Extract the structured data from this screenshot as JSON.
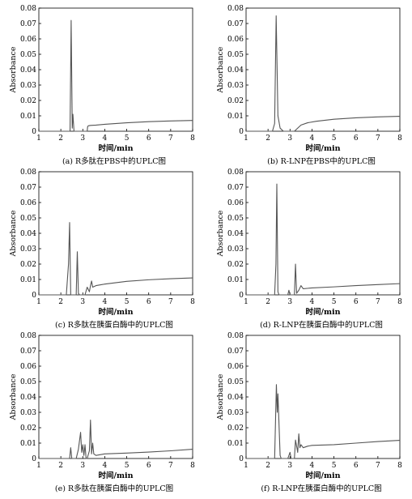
{
  "chart_data": [
    {
      "type": "line",
      "caption": "(a) R多肽在PBS中的UPLC图",
      "xlabel": "时间/min",
      "ylabel": "Absorbance",
      "xlim": [
        1,
        8
      ],
      "ylim": [
        0,
        0.08
      ],
      "xticks": [
        1,
        2,
        3,
        4,
        5,
        6,
        7,
        8
      ],
      "yticks": [
        0,
        0.01,
        0.02,
        0.03,
        0.04,
        0.05,
        0.06,
        0.07,
        0.08
      ],
      "ytick_labels": [
        "0",
        "0.01",
        "0.02",
        "0.03",
        "0.04",
        "0.05",
        "0.06",
        "0.07",
        "0.08"
      ],
      "grid": false,
      "series": [
        {
          "x": [
            1.0,
            2.3,
            2.42,
            2.47,
            2.52,
            2.55,
            2.6,
            2.65,
            2.75,
            3.1,
            3.2,
            3.22,
            3.25,
            3.35,
            3.6,
            4.0,
            5.0,
            6.0,
            7.0,
            8.0
          ],
          "y": [
            0.0,
            0.0,
            0.0,
            0.072,
            0.002,
            0.011,
            0.0,
            0.0,
            0.0,
            0.0,
            0.0,
            0.003,
            0.0035,
            0.0038,
            0.004,
            0.0045,
            0.0055,
            0.0062,
            0.0067,
            0.007
          ]
        }
      ]
    },
    {
      "type": "line",
      "caption": "(b) R-LNP在PBS中的UPLC图",
      "xlabel": "时间/min",
      "ylabel": "Absorbance",
      "xlim": [
        1,
        8
      ],
      "ylim": [
        0,
        0.08
      ],
      "xticks": [
        1,
        2,
        3,
        4,
        5,
        6,
        7,
        8
      ],
      "yticks": [
        0,
        0.01,
        0.02,
        0.03,
        0.04,
        0.05,
        0.06,
        0.07,
        0.08
      ],
      "ytick_labels": [
        "0",
        "0.01",
        "0.02",
        "0.03",
        "0.04",
        "0.05",
        "0.06",
        "0.07",
        "0.08"
      ],
      "grid": false,
      "series": [
        {
          "x": [
            1.0,
            2.2,
            2.3,
            2.37,
            2.45,
            2.55,
            2.7,
            3.1,
            3.2,
            3.5,
            3.8,
            4.2,
            5.0,
            6.0,
            7.0,
            8.0
          ],
          "y": [
            0.0,
            0.0,
            0.005,
            0.075,
            0.01,
            0.002,
            0.0,
            0.0,
            0.0,
            0.004,
            0.0055,
            0.0065,
            0.0078,
            0.0087,
            0.0093,
            0.0097
          ]
        }
      ]
    },
    {
      "type": "line",
      "caption": "(c) R多肽在胰蛋白酶中的UPLC图",
      "xlabel": "时间/min",
      "ylabel": "Absorbance",
      "xlim": [
        1,
        8
      ],
      "ylim": [
        0,
        0.08
      ],
      "xticks": [
        1,
        2,
        3,
        4,
        5,
        6,
        7,
        8
      ],
      "yticks": [
        0,
        0.01,
        0.02,
        0.03,
        0.04,
        0.05,
        0.06,
        0.07,
        0.08
      ],
      "ytick_labels": [
        "0",
        "0.01",
        "0.02",
        "0.03",
        "0.04",
        "0.05",
        "0.06",
        "0.07",
        "0.08"
      ],
      "grid": false,
      "series": [
        {
          "x": [
            1.0,
            2.25,
            2.35,
            2.4,
            2.45,
            2.5,
            2.7,
            2.75,
            2.8,
            2.85,
            3.1,
            3.2,
            3.3,
            3.35,
            3.4,
            3.45,
            3.6,
            4.0,
            5.0,
            6.0,
            7.0,
            8.0
          ],
          "y": [
            0.0,
            0.0,
            0.02,
            0.047,
            0.0,
            0.0,
            0.0,
            0.028,
            0.001,
            0.0,
            0.0,
            0.005,
            0.002,
            0.006,
            0.009,
            0.005,
            0.006,
            0.007,
            0.0088,
            0.0098,
            0.0105,
            0.011
          ]
        }
      ]
    },
    {
      "type": "line",
      "caption": "(d) R-LNP在胰蛋白酶中的UPLC图",
      "xlabel": "时间/min",
      "ylabel": "Absorbance",
      "xlim": [
        1,
        8
      ],
      "ylim": [
        0,
        0.08
      ],
      "xticks": [
        1,
        2,
        3,
        4,
        5,
        6,
        7,
        8
      ],
      "yticks": [
        0,
        0.01,
        0.02,
        0.03,
        0.04,
        0.05,
        0.06,
        0.07,
        0.08
      ],
      "ytick_labels": [
        "0",
        "0.01",
        "0.02",
        "0.03",
        "0.04",
        "0.05",
        "0.06",
        "0.07",
        "0.08"
      ],
      "grid": false,
      "series": [
        {
          "x": [
            1.0,
            2.3,
            2.36,
            2.4,
            2.45,
            2.5,
            2.9,
            2.95,
            3.0,
            3.05,
            3.2,
            3.25,
            3.3,
            3.4,
            3.5,
            3.6,
            4.0,
            5.0,
            6.0,
            7.0,
            8.0
          ],
          "y": [
            0.0,
            0.0,
            0.02,
            0.072,
            0.002,
            0.0,
            0.0,
            0.003,
            0.0,
            0.0,
            0.0,
            0.02,
            0.001,
            0.003,
            0.006,
            0.004,
            0.0045,
            0.0052,
            0.006,
            0.0067,
            0.0073
          ]
        }
      ]
    },
    {
      "type": "line",
      "caption": "(e) R多肽在胰蛋白酶中的UPLC图",
      "xlabel": "时间/min",
      "ylabel": "Absorbance",
      "xlim": [
        1,
        8
      ],
      "ylim": [
        0,
        0.08
      ],
      "xticks": [
        1,
        2,
        3,
        4,
        5,
        6,
        7,
        8
      ],
      "yticks": [
        0,
        0.01,
        0.02,
        0.03,
        0.04,
        0.05,
        0.06,
        0.07,
        0.08
      ],
      "ytick_labels": [
        "0",
        "0.01",
        "0.02",
        "0.03",
        "0.04",
        "0.05",
        "0.06",
        "0.07",
        "0.08"
      ],
      "grid": false,
      "series": [
        {
          "x": [
            1.0,
            2.4,
            2.45,
            2.5,
            2.7,
            2.8,
            2.9,
            2.95,
            3.0,
            3.05,
            3.1,
            3.15,
            3.2,
            3.3,
            3.35,
            3.4,
            3.45,
            3.5,
            3.6,
            4.0,
            5.0,
            6.0,
            7.0,
            8.0
          ],
          "y": [
            0.0,
            0.0,
            0.007,
            0.0,
            0.0,
            0.006,
            0.017,
            0.004,
            0.009,
            0.002,
            0.009,
            0.0,
            0.0,
            0.005,
            0.025,
            0.003,
            0.01,
            0.003,
            0.002,
            0.003,
            0.0035,
            0.0042,
            0.005,
            0.006
          ]
        }
      ]
    },
    {
      "type": "line",
      "caption": "(f) R-LNP在胰蛋白酶中的UPLC图",
      "xlabel": "时间/min",
      "ylabel": "Absorbance",
      "xlim": [
        1,
        8
      ],
      "ylim": [
        0,
        0.08
      ],
      "xticks": [
        1,
        2,
        3,
        4,
        5,
        6,
        7,
        8
      ],
      "yticks": [
        0,
        0.01,
        0.02,
        0.03,
        0.04,
        0.05,
        0.06,
        0.07,
        0.08
      ],
      "ytick_labels": [
        "0",
        "0.01",
        "0.02",
        "0.03",
        "0.04",
        "0.05",
        "0.06",
        "0.07",
        "0.08"
      ],
      "grid": false,
      "series": [
        {
          "x": [
            1.0,
            2.3,
            2.35,
            2.38,
            2.42,
            2.45,
            2.55,
            2.6,
            2.9,
            3.0,
            3.05,
            3.2,
            3.25,
            3.35,
            3.4,
            3.45,
            3.5,
            3.6,
            3.8,
            4.0,
            5.0,
            6.0,
            7.0,
            8.0
          ],
          "y": [
            0.0,
            0.0,
            0.03,
            0.048,
            0.03,
            0.042,
            0.002,
            0.0,
            0.0,
            0.004,
            0.0,
            0.0,
            0.012,
            0.004,
            0.016,
            0.007,
            0.009,
            0.007,
            0.008,
            0.0085,
            0.009,
            0.01,
            0.011,
            0.0118
          ]
        }
      ]
    }
  ]
}
